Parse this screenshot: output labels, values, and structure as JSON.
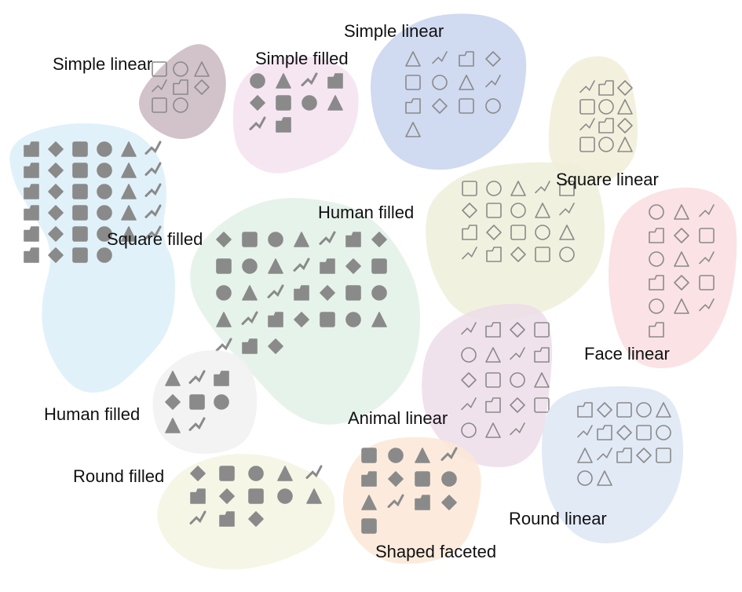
{
  "clusters": [
    {
      "label": "Simple linear",
      "color": "#c9b8c0",
      "style": "linear",
      "icons": [
        "chevron-left-icon",
        "libra-icon",
        "chevron-up-icon",
        "capricorn-icon",
        "chevron-right-icon",
        "parallel-icon",
        "caret-icon",
        "aquarius-icon"
      ]
    },
    {
      "label": "Simple filled",
      "color": "#f4e2f0",
      "style": "filled",
      "icons": [
        "marker-icon",
        "pen-icon",
        "gavel-icon",
        "rifle-icon",
        "candy-icon",
        "fork-icon",
        "wheat-icon",
        "airplane-icon",
        "pepper-icon",
        "brush-icon"
      ]
    },
    {
      "label": "Simple linear",
      "color": "#c8d3ee",
      "style": "linear",
      "icons": [
        "dropper-icon",
        "pickaxe-icon",
        "tape-icon",
        "paint-roller-icon",
        "axe-icon",
        "hammer-icon",
        "candy-cane-icon",
        "chisel-icon",
        "shovel-icon",
        "saw-icon",
        "screw-icon",
        "sickle-icon",
        "scythe-icon"
      ]
    },
    {
      "label": "Square linear",
      "color": "#f1efd8",
      "style": "linear",
      "icons": [
        "calendar-6-icon",
        "calendar-2-icon",
        "calendar-9-icon",
        "calendar-1-icon",
        "calendar-8-icon",
        "7z-file-icon",
        "calendar-7-icon",
        "calendar-0-icon",
        "calendar-4-icon",
        "3fr-file-icon",
        "calendar-3-icon",
        "calendar-5-icon"
      ]
    },
    {
      "label": "Square filled",
      "color": "#dceef8",
      "style": "filled",
      "icons": [
        "folder-add-icon",
        "image-icon",
        "folder-icon",
        "save-icon",
        "heart-folder-icon",
        "download-icon",
        "file-icon",
        "plus-circle-icon",
        "cloud-icon",
        "search-icon",
        "folder-search-icon",
        "asterisk-icon",
        "music-icon",
        "film-icon",
        "plus-icon",
        "xxx-icon",
        "book-icon",
        "bookmark-icon",
        "puzzle-icon",
        "puzzle-piece-icon",
        "puzzle-box-icon",
        "book-stack-icon",
        "waves-icon",
        "id-icon",
        "ai-icon",
        "zip-icon",
        "ae-icon",
        "lr-icon",
        "ps-icon",
        "zip-file-icon",
        "bb-icon",
        "music-file-icon",
        "az-icon",
        "network-icon"
      ]
    },
    {
      "label": "Human filled",
      "color": "#e2f1e6",
      "style": "filled",
      "icons": [
        "runner-icon",
        "cyclist-icon",
        "dancer-icon",
        "boxer-icon",
        "weightlifter-icon",
        "swimmer-icon",
        "archer-icon",
        "fencer-icon",
        "rower-icon",
        "climber-icon",
        "diver-icon",
        "gymnast-icon",
        "horse-rider-icon",
        "skier-icon",
        "kicker-icon",
        "wrestler-icon",
        "skater-icon",
        "golfer-icon",
        "biker-icon",
        "stretcher-icon",
        "hurdler-icon",
        "jumper-icon",
        "thrower-icon",
        "lifter-icon",
        "jogger-icon",
        "yoga-icon",
        "surfer-icon",
        "tennis-icon",
        "swim-icon",
        "football-icon",
        "hiker-icon"
      ]
    },
    {
      "label": "Square linear",
      "color": "#efeed9",
      "style": "linear",
      "icons": [
        "doc-chart-icon",
        "doc-door-icon",
        "doc-user-icon",
        "doc-star-icon",
        "doc-globe-icon",
        "doc-image-icon",
        "doc-pin-icon",
        "doc-book-icon",
        "doc-bulb-icon",
        "doc-mask-icon",
        "doc-plus-icon",
        "doc-heart-icon",
        "doc-bookmark-icon",
        "doc-download-icon",
        "doc-cursor-icon",
        "doc-at-icon",
        "doc-x-icon",
        "doc-copy-icon",
        "doc-flag-icon",
        "doc-ribbon-icon"
      ]
    },
    {
      "label": "Face linear",
      "color": "#f9dde1",
      "style": "linear",
      "icons": [
        "alien-icon",
        "globe-face-icon",
        "robot-icon",
        "cat-face-icon",
        "pig-face-icon",
        "tiki-icon",
        "ogre-icon",
        "cowboy-icon",
        "viking-icon",
        "dragon-icon",
        "woman-icon",
        "frog-icon",
        "princess-icon",
        "bald-man-icon",
        "bearded-icon",
        "helmet-icon"
      ]
    },
    {
      "label": "Human filled",
      "color": "#f1f1f1",
      "style": "filled",
      "icons": [
        "user-share-icon",
        "user-icon",
        "man-icon",
        "woman-icon",
        "group-icon",
        "user-add-icon",
        "woman-add-icon",
        "man-add-icon"
      ]
    },
    {
      "label": "Animal linear",
      "color": "#eddde9",
      "style": "linear",
      "icons": [
        "bird-icon",
        "chick-icon",
        "woodpecker-icon",
        "bee-icon",
        "toucan-icon",
        "unicorn-icon",
        "horse-icon",
        "dog-icon",
        "elephant-icon",
        "flamingo-icon",
        "giraffe-icon",
        "wolf-icon",
        "cat-icon",
        "sheep-icon",
        "deer-icon",
        "camel-icon",
        "spider-icon",
        "ladybug-icon",
        "bull-icon"
      ]
    },
    {
      "label": "Round linear",
      "color": "#dde6f5",
      "style": "linear",
      "icons": [
        "power-icon",
        "plus-circle-icon",
        "sad-face-icon",
        "grin-face-icon",
        "smile-icon",
        "forbidden-icon",
        "refresh-icon",
        "glasses-face-icon",
        "neutral-face-icon",
        "cool-face-icon",
        "laugh-face-icon",
        "baby-face-icon",
        "happy-face-icon",
        "kiss-face-icon",
        "beach-ball-icon",
        "lifebuoy-icon",
        "gear-icon"
      ]
    },
    {
      "label": "Round filled",
      "color": "#f4f4e3",
      "style": "filled",
      "icons": [
        "smiley-icon",
        "cat-badge-icon",
        "close-circle-icon",
        "badge-icon",
        "bitcoin-icon",
        "boo-icon",
        "chat-icon",
        "chat-dots-icon",
        "check-circle-icon",
        "download-circle-icon",
        "chat-bubble-icon",
        "number-5-icon",
        "dollar-warning-icon"
      ]
    },
    {
      "label": "Shaped faceted",
      "color": "#fce8d6",
      "style": "filled",
      "icons": [
        "cloud-rain-icon",
        "cloud-snow-icon",
        "cloud-drizzle-icon",
        "cloud-hail-icon",
        "cloud-sleet-icon",
        "sun-cloud-icon",
        "snowflakes-icon",
        "cloud-heavy-rain-icon",
        "sun-behind-cloud-icon",
        "no-sun-icon",
        "cloud-moon-icon",
        "cloud-icon",
        "cloud-thunder-icon"
      ]
    }
  ]
}
